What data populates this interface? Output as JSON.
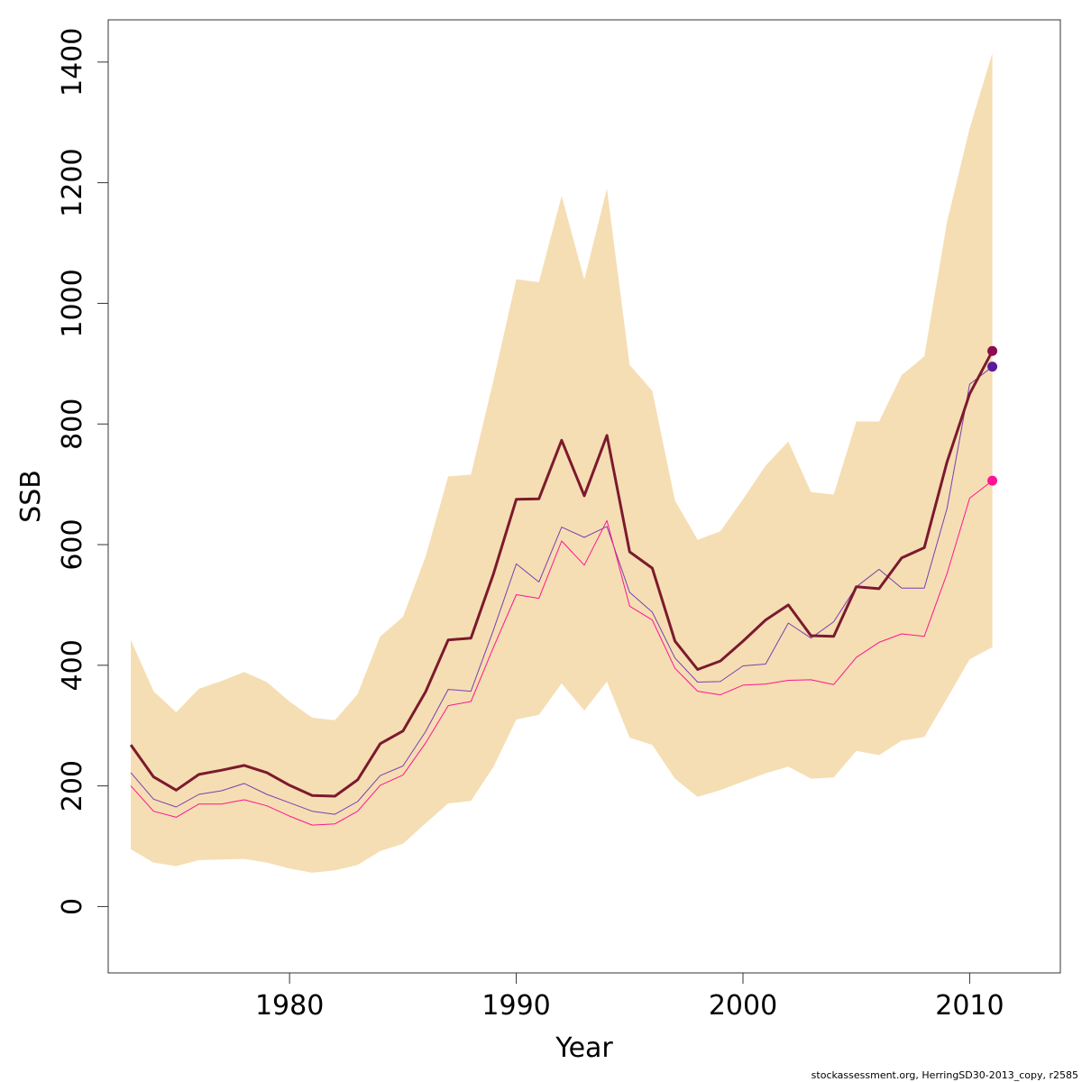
{
  "chart_data": {
    "type": "line",
    "xlabel": "Year",
    "ylabel": "SSB",
    "xlim": [
      1972,
      2014
    ],
    "ylim": [
      -110,
      1470
    ],
    "x_ticks": [
      1980,
      1990,
      2000,
      2010
    ],
    "x_tick_labels": [
      "1980",
      "1990",
      "2000",
      "2010"
    ],
    "y_ticks": [
      0,
      200,
      400,
      600,
      800,
      1000,
      1200,
      1400
    ],
    "y_tick_labels": [
      "0",
      "200",
      "400",
      "600",
      "800",
      "1000",
      "1200",
      "1400"
    ],
    "grid": false,
    "legend": "none",
    "x": [
      1973,
      1974,
      1975,
      1976,
      1977,
      1978,
      1979,
      1980,
      1981,
      1982,
      1983,
      1984,
      1985,
      1986,
      1987,
      1988,
      1989,
      1990,
      1991,
      1992,
      1993,
      1994,
      1995,
      1996,
      1997,
      1998,
      1999,
      2000,
      2001,
      2002,
      2003,
      2004,
      2005,
      2006,
      2007,
      2008,
      2009,
      2010,
      2011
    ],
    "band": {
      "color": "#F5DEB3",
      "lower": [
        95,
        73,
        67,
        77,
        78,
        79,
        73,
        63,
        56,
        60,
        69,
        92,
        104,
        138,
        171,
        175,
        232,
        310,
        318,
        370,
        325,
        373,
        280,
        268,
        212,
        182,
        193,
        207,
        221,
        232,
        212,
        214,
        258,
        251,
        275,
        281,
        345,
        410,
        430
      ],
      "upper": [
        442,
        357,
        322,
        361,
        374,
        389,
        372,
        340,
        313,
        309,
        352,
        448,
        480,
        580,
        713,
        716,
        873,
        1040,
        1035,
        1178,
        1039,
        1190,
        898,
        855,
        673,
        608,
        622,
        675,
        731,
        771,
        687,
        683,
        804,
        804,
        881,
        912,
        1135,
        1290,
        1415
      ]
    },
    "series": [
      {
        "color": "#7B1A2E",
        "width": 3,
        "end_point": {
          "x": 2011,
          "y": 921,
          "color": "#8B0A50"
        },
        "values": [
          268,
          215,
          193,
          219,
          226,
          234,
          222,
          201,
          184,
          183,
          210,
          270,
          291,
          356,
          442,
          445,
          552,
          675,
          676,
          773,
          681,
          781,
          588,
          561,
          440,
          393,
          407,
          440,
          475,
          500,
          449,
          448,
          530,
          527,
          578,
          595,
          737,
          850,
          921
        ]
      },
      {
        "color": "#7B3FB0",
        "width": 1,
        "end_point": {
          "x": 2011,
          "y": 895,
          "color": "#5A1A9E"
        },
        "values": [
          222,
          178,
          165,
          186,
          192,
          204,
          186,
          172,
          158,
          153,
          174,
          217,
          233,
          290,
          360,
          357,
          459,
          568,
          538,
          629,
          612,
          630,
          521,
          488,
          412,
          372,
          373,
          399,
          402,
          470,
          445,
          472,
          530,
          559,
          528,
          528,
          660,
          866,
          895
        ]
      },
      {
        "color": "#FF1493",
        "width": 1,
        "end_point": {
          "x": 2011,
          "y": 706,
          "color": "#FF1493"
        },
        "values": [
          200,
          158,
          148,
          170,
          170,
          177,
          167,
          150,
          135,
          137,
          158,
          201,
          218,
          271,
          333,
          340,
          430,
          517,
          511,
          606,
          566,
          640,
          498,
          475,
          395,
          357,
          351,
          367,
          369,
          375,
          376,
          368,
          413,
          438,
          452,
          448,
          552,
          677,
          706
        ]
      }
    ]
  },
  "footer": {
    "text": "stockassessment.org, HerringSD30-2013_copy, r2585"
  }
}
